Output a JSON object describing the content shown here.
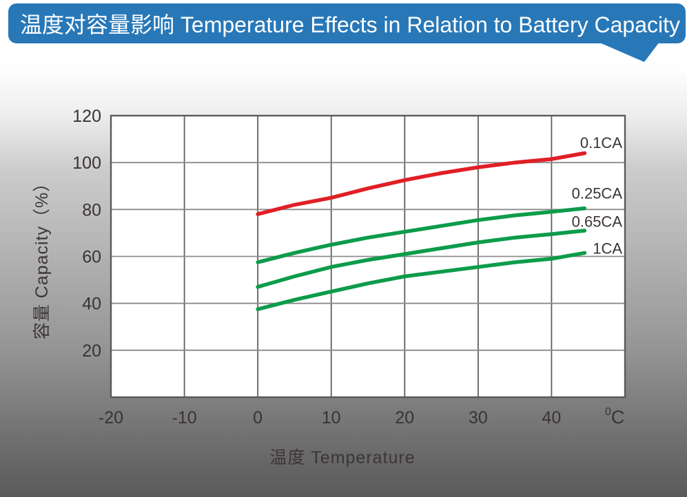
{
  "banner": {
    "title": "温度对容量影响 Temperature Effects in Relation to Battery Capacity",
    "bg_color": "#2878b8",
    "text_color": "#ffffff"
  },
  "chart_data": {
    "type": "line",
    "title": "温度对容量影响 Temperature Effects in Relation to Battery Capacity",
    "xlabel": "温度  Temperature",
    "ylabel": "容量  Capacity（%）",
    "x_unit_sup": "0",
    "x_unit": "C",
    "xlim": [
      -20,
      50
    ],
    "ylim": [
      0,
      120
    ],
    "x_ticks": [
      -20,
      -10,
      0,
      10,
      20,
      30,
      40
    ],
    "y_ticks": [
      120,
      100,
      80,
      60,
      40,
      20
    ],
    "grid": true,
    "legend_position": "inline-right",
    "text_color": "#3a3334",
    "series": [
      {
        "name": "0.1CA",
        "color": "#e01f26",
        "label_y": 108.5,
        "points": [
          [
            0,
            78
          ],
          [
            5,
            82
          ],
          [
            10,
            85
          ],
          [
            15,
            89
          ],
          [
            20,
            92.5
          ],
          [
            25,
            95.5
          ],
          [
            30,
            98
          ],
          [
            35,
            100
          ],
          [
            40,
            101.5
          ],
          [
            44.5,
            104
          ]
        ]
      },
      {
        "name": "0.25CA",
        "color": "#0c9c4a",
        "label_y": 87,
        "points": [
          [
            0,
            57.5
          ],
          [
            5,
            61.5
          ],
          [
            10,
            65
          ],
          [
            15,
            68
          ],
          [
            20,
            70.5
          ],
          [
            25,
            73
          ],
          [
            30,
            75.5
          ],
          [
            35,
            77.5
          ],
          [
            40,
            79
          ],
          [
            44.5,
            80.5
          ]
        ]
      },
      {
        "name": "0.65CA",
        "color": "#0c9c4a",
        "label_y": 75,
        "points": [
          [
            0,
            47
          ],
          [
            5,
            51.5
          ],
          [
            10,
            55.5
          ],
          [
            15,
            58.5
          ],
          [
            20,
            61
          ],
          [
            25,
            63.5
          ],
          [
            30,
            66
          ],
          [
            35,
            68
          ],
          [
            40,
            69.5
          ],
          [
            44.5,
            71
          ]
        ]
      },
      {
        "name": "1CA",
        "color": "#0c9c4a",
        "label_y": 63.5,
        "points": [
          [
            0,
            37.5
          ],
          [
            5,
            41.5
          ],
          [
            10,
            45
          ],
          [
            15,
            48.5
          ],
          [
            20,
            51.5
          ],
          [
            25,
            53.5
          ],
          [
            30,
            55.5
          ],
          [
            35,
            57.5
          ],
          [
            40,
            59
          ],
          [
            44.5,
            61.5
          ]
        ]
      }
    ]
  }
}
